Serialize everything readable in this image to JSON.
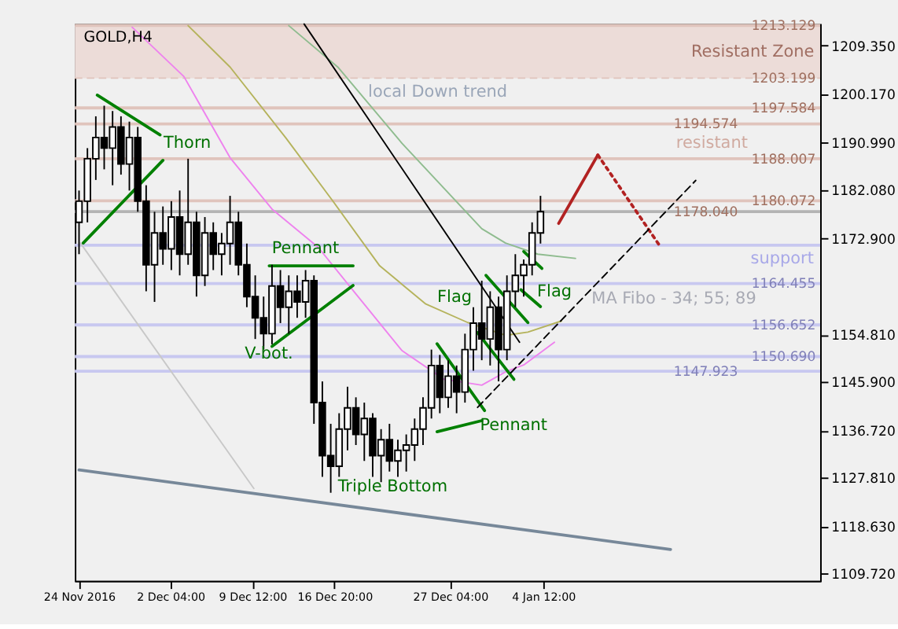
{
  "chart_data": {
    "type": "candlestick",
    "title": "GOLD,H4",
    "color": "#000000",
    "x": [
      "2016-11-24T00:00",
      "2016-11-24T18:00",
      "2016-11-25T12:00",
      "2016-11-26T06:00",
      "2016-11-27T00:00",
      "2016-11-27T18:00",
      "2016-11-28T12:00",
      "2016-11-29T06:00",
      "2016-11-30T00:00",
      "2016-11-30T18:00",
      "2016-12-01T12:00",
      "2016-12-02T06:00",
      "2016-12-03T00:00",
      "2016-12-03T18:00",
      "2016-12-04T12:00",
      "2016-12-05T06:00",
      "2016-12-06T00:00",
      "2016-12-06T18:00",
      "2016-12-07T12:00",
      "2016-12-08T06:00",
      "2016-12-09T00:00",
      "2016-12-09T18:00",
      "2016-12-10T12:00",
      "2016-12-11T06:00",
      "2016-12-12T00:00",
      "2016-12-12T18:00",
      "2016-12-13T12:00",
      "2016-12-14T06:00",
      "2016-12-15T00:00",
      "2016-12-15T18:00",
      "2016-12-16T12:00",
      "2016-12-17T06:00",
      "2016-12-18T00:00",
      "2016-12-18T18:00",
      "2016-12-19T12:00",
      "2016-12-20T06:00",
      "2016-12-21T00:00",
      "2016-12-21T18:00",
      "2016-12-22T12:00",
      "2016-12-23T06:00",
      "2016-12-24T00:00",
      "2016-12-24T18:00",
      "2016-12-25T12:00",
      "2016-12-26T06:00",
      "2016-12-27T00:00",
      "2016-12-27T18:00",
      "2016-12-28T12:00",
      "2016-12-29T06:00",
      "2016-12-30T00:00",
      "2016-12-30T18:00",
      "2016-12-31T12:00",
      "2017-01-01T06:00",
      "2017-01-02T00:00",
      "2017-01-02T18:00",
      "2017-01-03T12:00",
      "2017-01-04T06:00"
    ],
    "ohlc": [
      [
        1176,
        1182,
        1170,
        1180
      ],
      [
        1180,
        1190,
        1176,
        1188
      ],
      [
        1188,
        1196,
        1184,
        1192
      ],
      [
        1192,
        1198,
        1186,
        1190
      ],
      [
        1190,
        1197,
        1183,
        1194
      ],
      [
        1194,
        1196,
        1185,
        1187
      ],
      [
        1187,
        1195,
        1182,
        1192
      ],
      [
        1192,
        1194,
        1178,
        1180
      ],
      [
        1180,
        1183,
        1163,
        1168
      ],
      [
        1168,
        1178,
        1161,
        1174
      ],
      [
        1174,
        1179,
        1168,
        1171
      ],
      [
        1171,
        1180,
        1167,
        1177
      ],
      [
        1177,
        1182,
        1166,
        1170
      ],
      [
        1170,
        1188,
        1168,
        1176
      ],
      [
        1176,
        1178,
        1162,
        1166
      ],
      [
        1166,
        1177,
        1164,
        1174
      ],
      [
        1174,
        1176,
        1167,
        1170
      ],
      [
        1170,
        1174,
        1166,
        1172
      ],
      [
        1172,
        1181,
        1168,
        1176
      ],
      [
        1176,
        1178,
        1166,
        1168
      ],
      [
        1168,
        1172,
        1160,
        1162
      ],
      [
        1162,
        1166,
        1154,
        1158
      ],
      [
        1158,
        1162,
        1152,
        1155
      ],
      [
        1155,
        1168,
        1153,
        1164
      ],
      [
        1164,
        1167,
        1157,
        1160
      ],
      [
        1160,
        1166,
        1155,
        1163
      ],
      [
        1163,
        1166,
        1158,
        1161
      ],
      [
        1161,
        1167,
        1158,
        1165
      ],
      [
        1165,
        1166,
        1138,
        1142
      ],
      [
        1142,
        1146,
        1128,
        1132
      ],
      [
        1132,
        1138,
        1125,
        1130
      ],
      [
        1130,
        1140,
        1128,
        1137
      ],
      [
        1137,
        1145,
        1133,
        1141
      ],
      [
        1141,
        1143,
        1134,
        1136
      ],
      [
        1136,
        1142,
        1131,
        1139
      ],
      [
        1139,
        1140,
        1128,
        1132
      ],
      [
        1132,
        1137,
        1127,
        1135
      ],
      [
        1135,
        1138,
        1129,
        1131
      ],
      [
        1131,
        1135,
        1128,
        1133
      ],
      [
        1133,
        1136,
        1129,
        1134
      ],
      [
        1134,
        1139,
        1131,
        1137
      ],
      [
        1137,
        1143,
        1134,
        1141
      ],
      [
        1141,
        1152,
        1139,
        1149
      ],
      [
        1149,
        1151,
        1140,
        1143
      ],
      [
        1143,
        1150,
        1141,
        1147
      ],
      [
        1147,
        1149,
        1140,
        1144
      ],
      [
        1144,
        1155,
        1142,
        1152
      ],
      [
        1152,
        1160,
        1148,
        1157
      ],
      [
        1157,
        1165,
        1150,
        1154
      ],
      [
        1154,
        1163,
        1149,
        1160
      ],
      [
        1160,
        1162,
        1146,
        1152
      ],
      [
        1152,
        1166,
        1150,
        1163
      ],
      [
        1163,
        1170,
        1160,
        1166
      ],
      [
        1166,
        1169,
        1162,
        1168
      ],
      [
        1168,
        1176,
        1166,
        1174
      ],
      [
        1174,
        1181,
        1172,
        1178
      ]
    ],
    "series": [
      {
        "type": "line",
        "color": "#ee82ee",
        "x": [
          "2016-11-28T18:00",
          "2016-12-03T09:00",
          "2016-12-07T12:00",
          "2016-12-11T06:00",
          "2016-12-15T09:00",
          "2016-12-18T18:00",
          "2016-12-22T21:00",
          "2016-12-26T15:00",
          "2016-12-30T00:00",
          "2017-01-01T03:00",
          "2017-01-02T18:00",
          "2017-01-05T12:00"
        ],
        "values": [
          1212.8,
          1203.5,
          1188.2,
          1178.5,
          1171.3,
          1162.5,
          1151.8,
          1146.4,
          1145.3,
          1147.8,
          1149.1,
          1153.4
        ]
      },
      {
        "type": "line",
        "color": "#b5b35c",
        "x": [
          "2016-12-03T18:00",
          "2016-12-07T12:00",
          "2016-12-12T12:00",
          "2016-12-16T15:00",
          "2016-12-20T21:00",
          "2016-12-25T00:00",
          "2016-12-28T18:00",
          "2017-01-01T03:00",
          "2017-01-03T03:00",
          "2017-01-06T03:00"
        ],
        "values": [
          1213.1,
          1205.3,
          1191.9,
          1180.2,
          1167.8,
          1160.6,
          1157.1,
          1154.7,
          1155.3,
          1157.4
        ]
      },
      {
        "type": "line",
        "color": "#8fbc8f",
        "x": [
          "2016-12-12T18:00",
          "2016-12-17T03:00",
          "2016-12-22T21:00",
          "2016-12-30T00:00",
          "2017-01-01T03:00",
          "2017-01-04T00:00",
          "2017-01-07T09:00"
        ],
        "values": [
          1213.1,
          1205.3,
          1190.9,
          1174.8,
          1172.1,
          1170.0,
          1169.2
        ]
      },
      {
        "type": "line",
        "color": "#000000",
        "x": [
          "2016-12-14T03:00",
          "2017-01-02T09:00"
        ],
        "values": [
          1213.4,
          1153.4
        ]
      },
      {
        "type": "line",
        "color": "#778899",
        "x": [
          "2016-11-24T00:00",
          "2017-01-15T21:00"
        ],
        "values": [
          1129.3,
          1114.3
        ]
      },
      {
        "type": "line",
        "color": "#c8c8c8",
        "x": [
          "2016-11-24T03:00",
          "2016-12-09T15:00"
        ],
        "values": [
          1172.1,
          1125.8
        ]
      },
      {
        "type": "line",
        "color": "#008000",
        "x": [
          "2016-11-25T15:00",
          "2016-12-01T06:00"
        ],
        "values": [
          1200.0,
          1192.5
        ]
      },
      {
        "type": "line",
        "color": "#008000",
        "x": [
          "2016-11-24T09:00",
          "2016-12-01T12:00"
        ],
        "values": [
          1172.1,
          1187.7
        ]
      },
      {
        "type": "line",
        "color": "#008000",
        "x": [
          "2016-12-11T00:00",
          "2016-12-18T12:00"
        ],
        "values": [
          1167.8,
          1167.8
        ]
      },
      {
        "type": "line",
        "color": "#008000",
        "x": [
          "2016-12-11T06:00",
          "2016-12-18T12:00"
        ],
        "values": [
          1152.6,
          1164.1
        ]
      },
      {
        "type": "line",
        "color": "#008000",
        "x": [
          "2016-12-26T00:00",
          "2016-12-30T00:00"
        ],
        "values": [
          1136.5,
          1138.6
        ]
      },
      {
        "type": "line",
        "color": "#008000",
        "x": [
          "2016-12-26T00:00",
          "2016-12-30T06:00"
        ],
        "values": [
          1153.1,
          1140.5
        ]
      },
      {
        "type": "line",
        "color": "#008000",
        "x": [
          "2016-12-29T15:00",
          "2017-01-01T21:00"
        ],
        "values": [
          1155.2,
          1146.4
        ]
      },
      {
        "type": "line",
        "color": "#008000",
        "x": [
          "2016-12-30T09:00",
          "2017-01-03T03:00"
        ],
        "values": [
          1166.0,
          1157.1
        ]
      },
      {
        "type": "line",
        "color": "#008000",
        "x": [
          "2017-01-02T18:00",
          "2017-01-04T09:00"
        ],
        "values": [
          1170.5,
          1167.3
        ]
      },
      {
        "type": "line",
        "color": "#008000",
        "x": [
          "2017-01-02T12:00",
          "2017-01-04T06:00"
        ],
        "values": [
          1163.3,
          1160.1
        ]
      },
      {
        "type": "line",
        "color": "#b22222",
        "x": [
          "2017-01-05T21:00",
          "2017-01-09T09:00"
        ],
        "values": [
          1175.8,
          1188.7
        ]
      },
      {
        "type": "line",
        "color": "#b22222",
        "line_style": "dotted",
        "x": [
          "2017-01-09T09:00",
          "2017-01-15T00:00"
        ],
        "values": [
          1188.7,
          1171.3
        ]
      },
      {
        "type": "line",
        "color": "#000000",
        "line_style": "dashed",
        "x": [
          "2016-12-29T15:00",
          "2017-01-18T03:00"
        ],
        "values": [
          1141.1,
          1183.9
        ]
      }
    ],
    "xlim": [
      "2016-11-23T15:00",
      "2017-01-29T06:00"
    ],
    "xticks": [
      {
        "value": "2016-11-24T00:00",
        "label": "24 Nov 2016"
      },
      {
        "value": "2016-12-02T04:00",
        "label": "2 Dec 04:00"
      },
      {
        "value": "2016-12-09T12:00",
        "label": "9 Dec 12:00"
      },
      {
        "value": "2016-12-16T20:00",
        "label": "16 Dec 20:00"
      },
      {
        "value": "2016-12-27T04:00",
        "label": "27 Dec 04:00"
      },
      {
        "value": "2017-01-04T12:00",
        "label": "4 Jan 12:00"
      }
    ],
    "ylim": [
      1108.4,
      1213.4
    ],
    "yticks": [
      {
        "value": 1109.72,
        "label": "1109.720"
      },
      {
        "value": 1118.63,
        "label": "1118.630"
      },
      {
        "value": 1127.81,
        "label": "1127.810"
      },
      {
        "value": 1136.72,
        "label": "1136.720"
      },
      {
        "value": 1145.9,
        "label": "1145.900"
      },
      {
        "value": 1154.81,
        "label": "1154.810"
      },
      {
        "value": 1172.9,
        "label": "1172.900"
      },
      {
        "value": 1182.08,
        "label": "1182.080"
      },
      {
        "value": 1190.99,
        "label": "1190.990"
      },
      {
        "value": 1200.17,
        "label": "1200.170"
      },
      {
        "value": 1209.35,
        "label": "1209.350"
      }
    ],
    "bands": [
      {
        "axis": "y",
        "from": 1203.199,
        "to": 1213.129,
        "label": "Resistant Zone",
        "color": "#ecdcd8"
      }
    ],
    "ref_lines": [
      {
        "axis": "y",
        "value": 1213.129,
        "label": "1213.129",
        "color": "#e0c4bc"
      },
      {
        "axis": "y",
        "value": 1203.199,
        "label": "1203.199",
        "color": "#e0c4bc",
        "line_style": "dashed"
      },
      {
        "axis": "y",
        "value": 1197.584,
        "label": "1197.584",
        "color": "#e0c4bc"
      },
      {
        "axis": "y",
        "value": 1194.574,
        "label": "1194.574",
        "color": "#e0c4bc"
      },
      {
        "axis": "y",
        "value": 1188.007,
        "label": "1188.007",
        "color": "#e0c4bc"
      },
      {
        "axis": "y",
        "value": 1180.072,
        "label": "1180.072",
        "color": "#e0c4bc"
      },
      {
        "axis": "y",
        "value": 1178.04,
        "label": "1178.040",
        "color": "#b4b4b4"
      },
      {
        "axis": "y",
        "value": 1171.7,
        "color": "#c8c8f0"
      },
      {
        "axis": "y",
        "value": 1164.455,
        "label": "1164.455",
        "color": "#c8c8f0"
      },
      {
        "axis": "y",
        "value": 1156.652,
        "label": "1156.652",
        "color": "#c8c8f0"
      },
      {
        "axis": "y",
        "value": 1150.69,
        "label": "1150.690",
        "color": "#c8c8f0"
      },
      {
        "axis": "y",
        "value": 1147.923,
        "label": "1147.923",
        "color": "#c8c8f0"
      }
    ],
    "annotations": [
      "local Down trend",
      "Thorn",
      "Pennant",
      "V-bot.",
      "Flag",
      "Flag",
      "Pennant",
      "Triple Bottom",
      "MA Fibo - 34; 55; 89",
      "resistant",
      "support"
    ],
    "grid": false
  }
}
